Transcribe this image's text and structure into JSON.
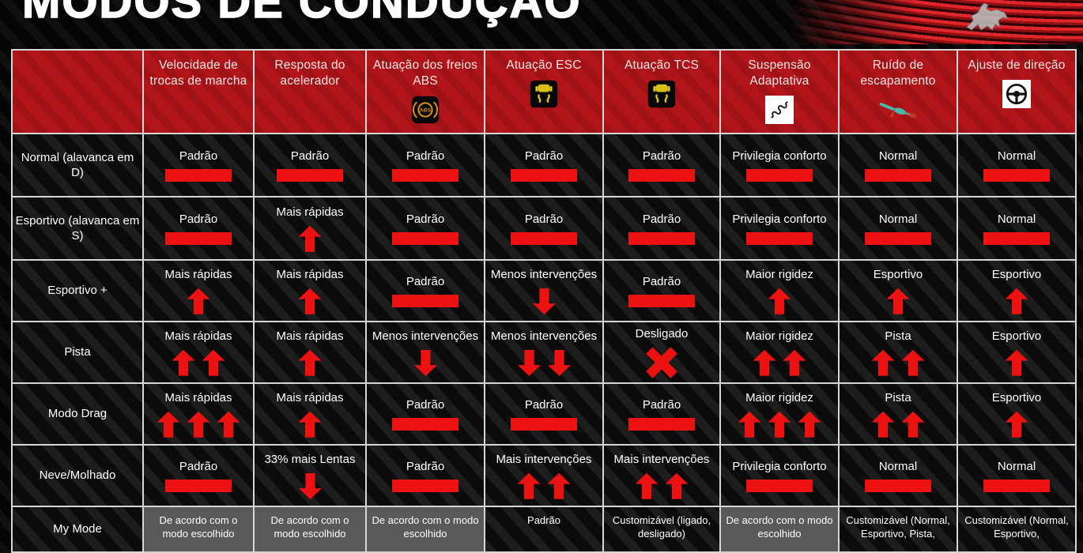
{
  "title": "MODOS DE CONDUÇÃO",
  "logo": {
    "name": "pony-logo"
  },
  "colors": {
    "header_red": "#b11419",
    "indicator_red": "#ed1212",
    "gridline": "#d6d6d6",
    "gray_cell": "#595959",
    "background": "#050505",
    "warning_amber": "#e0940f",
    "warning_yellow": "#d8c018"
  },
  "table": {
    "columns": [
      {
        "label": "Velocidade de trocas de marcha",
        "icon": null
      },
      {
        "label": "Resposta do acelerador",
        "icon": null
      },
      {
        "label": "Atuação dos freios ABS",
        "icon": "abs-warning-icon"
      },
      {
        "label": "Atuação ESC",
        "icon": "esc-warning-icon"
      },
      {
        "label": "Atuação TCS",
        "icon": "tcs-warning-icon"
      },
      {
        "label": "Suspensão Adaptativa",
        "icon": "suspension-icon"
      },
      {
        "label": "Ruído de escapamento",
        "icon": "exhaust-icon"
      },
      {
        "label": "Ajuste de direção",
        "icon": "steering-wheel-icon"
      }
    ],
    "rows": [
      {
        "mode": "Normal (alavanca em D)",
        "cells": [
          {
            "text": "Padrão",
            "ind": "bar"
          },
          {
            "text": "Padrão",
            "ind": "bar"
          },
          {
            "text": "Padrão",
            "ind": "bar"
          },
          {
            "text": "Padrão",
            "ind": "bar"
          },
          {
            "text": "Padrão",
            "ind": "bar"
          },
          {
            "text": "Privilegia conforto",
            "ind": "bar"
          },
          {
            "text": "Normal",
            "ind": "bar"
          },
          {
            "text": "Normal",
            "ind": "bar"
          }
        ]
      },
      {
        "mode": "Esportivo (alavanca em S)",
        "cells": [
          {
            "text": "Padrão",
            "ind": "bar"
          },
          {
            "text": "Mais rápidas",
            "ind": "up:1"
          },
          {
            "text": "Padrão",
            "ind": "bar"
          },
          {
            "text": "Padrão",
            "ind": "bar"
          },
          {
            "text": "Padrão",
            "ind": "bar"
          },
          {
            "text": "Privilegia conforto",
            "ind": "bar"
          },
          {
            "text": "Normal",
            "ind": "bar"
          },
          {
            "text": "Normal",
            "ind": "bar"
          }
        ]
      },
      {
        "mode": "Esportivo +",
        "cells": [
          {
            "text": "Mais rápidas",
            "ind": "up:1"
          },
          {
            "text": "Mais rápidas",
            "ind": "up:1"
          },
          {
            "text": "Padrão",
            "ind": "bar"
          },
          {
            "text": "Menos intervenções",
            "ind": "down:1"
          },
          {
            "text": "Padrão",
            "ind": "bar"
          },
          {
            "text": "Maior rigidez",
            "ind": "up:1"
          },
          {
            "text": "Esportivo",
            "ind": "up:1"
          },
          {
            "text": "Esportivo",
            "ind": "up:1"
          }
        ]
      },
      {
        "mode": "Pista",
        "cells": [
          {
            "text": "Mais rápidas",
            "ind": "up:2"
          },
          {
            "text": "Mais rápidas",
            "ind": "up:1"
          },
          {
            "text": "Menos intervenções",
            "ind": "down:1"
          },
          {
            "text": "Menos intervenções",
            "ind": "down:2"
          },
          {
            "text": "Desligado",
            "ind": "x"
          },
          {
            "text": "Maior rigidez",
            "ind": "up:2"
          },
          {
            "text": "Pista",
            "ind": "up:2"
          },
          {
            "text": "Esportivo",
            "ind": "up:1"
          }
        ]
      },
      {
        "mode": "Modo Drag",
        "cells": [
          {
            "text": "Mais rápidas",
            "ind": "up:3"
          },
          {
            "text": "Mais rápidas",
            "ind": "up:1"
          },
          {
            "text": "Padrão",
            "ind": "bar"
          },
          {
            "text": "Padrão",
            "ind": "bar"
          },
          {
            "text": "Padrão",
            "ind": "bar"
          },
          {
            "text": "Maior rigidez",
            "ind": "up:3"
          },
          {
            "text": "Pista",
            "ind": "up:2"
          },
          {
            "text": "Esportivo",
            "ind": "up:1"
          }
        ]
      },
      {
        "mode": "Neve/Molhado",
        "cells": [
          {
            "text": "Padrão",
            "ind": "bar"
          },
          {
            "text": "33% mais Lentas",
            "ind": "down:1"
          },
          {
            "text": "Padrão",
            "ind": "bar"
          },
          {
            "text": "Mais intervenções",
            "ind": "up:2"
          },
          {
            "text": "Mais intervenções",
            "ind": "up:2"
          },
          {
            "text": "Privilegia conforto",
            "ind": "bar"
          },
          {
            "text": "Normal",
            "ind": "bar"
          },
          {
            "text": "Normal",
            "ind": "bar"
          }
        ]
      },
      {
        "mode": "My Mode",
        "compact": true,
        "cells": [
          {
            "text": "De acordo com o modo escolhido",
            "ind": "none",
            "gray": true
          },
          {
            "text": "De acordo com o modo escolhido",
            "ind": "none",
            "gray": true
          },
          {
            "text": "De acordo com o modo escolhido",
            "ind": "none",
            "gray": true
          },
          {
            "text": "Padrão",
            "ind": "none"
          },
          {
            "text": "Customizável (ligado, desligado)",
            "ind": "none"
          },
          {
            "text": "De acordo com o modo escolhido",
            "ind": "none",
            "gray": true
          },
          {
            "text": "Customizável (Normal, Esportivo, Pista,",
            "ind": "none"
          },
          {
            "text": "Customizável (Normal, Esportivo,",
            "ind": "none"
          }
        ]
      }
    ]
  }
}
